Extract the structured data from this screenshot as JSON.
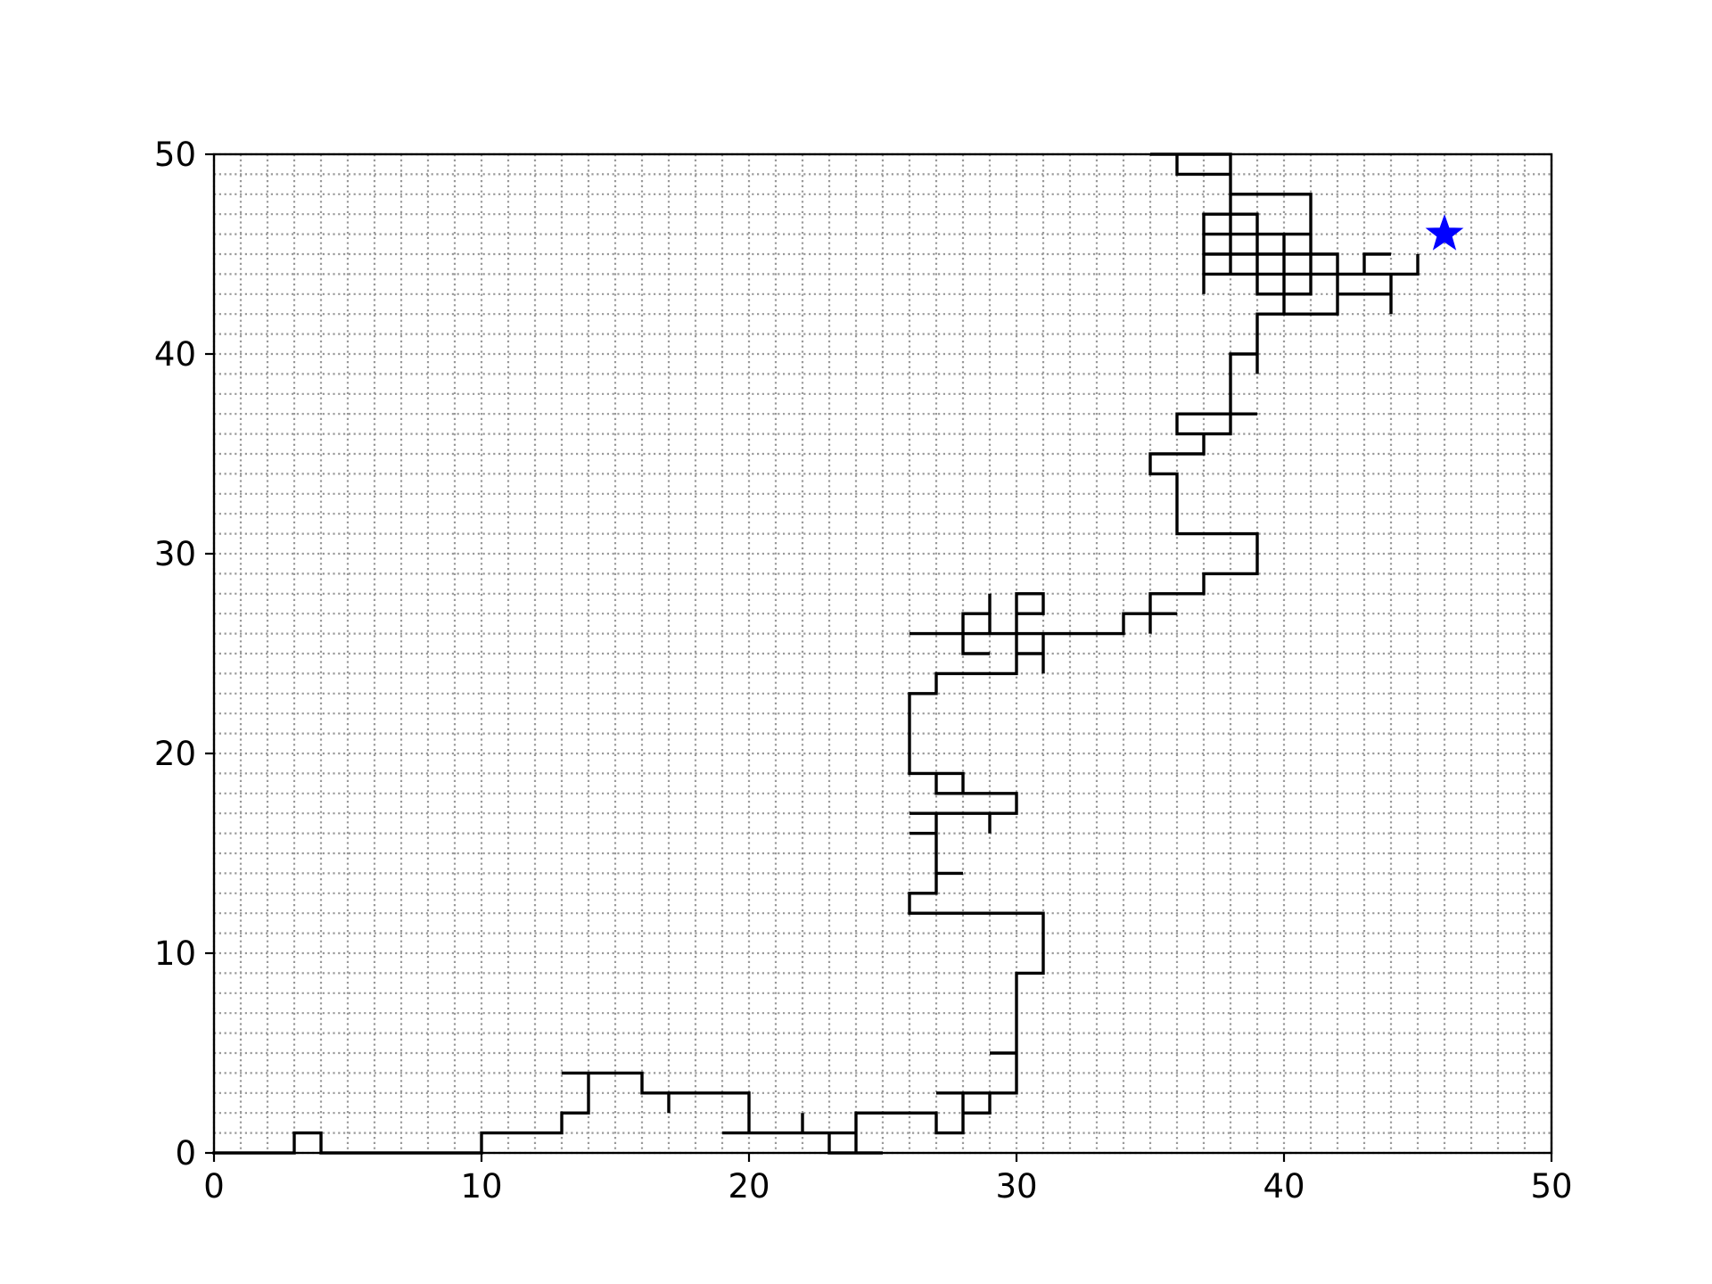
{
  "chart_data": {
    "type": "line",
    "title": "",
    "xlabel": "",
    "ylabel": "",
    "xlim": [
      0,
      50
    ],
    "ylim": [
      0,
      50
    ],
    "x_ticks": [
      "0",
      "10",
      "20",
      "30",
      "40",
      "50"
    ],
    "y_ticks": [
      "0",
      "10",
      "20",
      "30",
      "40",
      "50"
    ],
    "grid": true,
    "grid_step": 1,
    "grid_style": "dotted",
    "grid_color": "#999999",
    "path_color": "#000000",
    "marker_color": "#0000ff",
    "series": [
      {
        "marker": "none",
        "points": [
          [
            0,
            0
          ],
          [
            3,
            0
          ],
          [
            3,
            1
          ],
          [
            4,
            1
          ],
          [
            4,
            0
          ],
          [
            10,
            0
          ],
          [
            10,
            1
          ],
          [
            13,
            1
          ],
          [
            13,
            2
          ],
          [
            14,
            2
          ],
          [
            14,
            4
          ],
          [
            13,
            4
          ],
          [
            16,
            4
          ],
          [
            16,
            3
          ],
          [
            17,
            3
          ],
          [
            17,
            2
          ],
          [
            17,
            3
          ],
          [
            20,
            3
          ],
          [
            20,
            1
          ],
          [
            19,
            1
          ],
          [
            22,
            1
          ],
          [
            22,
            2
          ],
          [
            22,
            1
          ],
          [
            24,
            1
          ],
          [
            24,
            0
          ],
          [
            23,
            0
          ],
          [
            23,
            1
          ],
          [
            24,
            1
          ],
          [
            24,
            0
          ],
          [
            25,
            0
          ],
          [
            24,
            0
          ],
          [
            24,
            2
          ],
          [
            27,
            2
          ],
          [
            27,
            1
          ],
          [
            28,
            1
          ],
          [
            28,
            3
          ],
          [
            27,
            3
          ],
          [
            29,
            3
          ],
          [
            29,
            2
          ],
          [
            28,
            2
          ],
          [
            28,
            3
          ],
          [
            30,
            3
          ],
          [
            30,
            5
          ],
          [
            29,
            5
          ],
          [
            30,
            5
          ],
          [
            30,
            9
          ],
          [
            31,
            9
          ],
          [
            31,
            12
          ],
          [
            26,
            12
          ],
          [
            26,
            13
          ],
          [
            27,
            13
          ],
          [
            27,
            14
          ],
          [
            28,
            14
          ],
          [
            27,
            14
          ],
          [
            27,
            16
          ],
          [
            26,
            16
          ],
          [
            27,
            16
          ],
          [
            27,
            17
          ],
          [
            26,
            17
          ],
          [
            29,
            17
          ],
          [
            29,
            16
          ],
          [
            29,
            17
          ],
          [
            30,
            17
          ],
          [
            30,
            18
          ],
          [
            27,
            18
          ],
          [
            27,
            19
          ],
          [
            28,
            19
          ],
          [
            28,
            18
          ],
          [
            27,
            18
          ],
          [
            27,
            19
          ],
          [
            26,
            19
          ],
          [
            26,
            23
          ],
          [
            27,
            23
          ],
          [
            27,
            24
          ],
          [
            30,
            24
          ],
          [
            30,
            28
          ],
          [
            31,
            28
          ],
          [
            31,
            27
          ],
          [
            30,
            27
          ],
          [
            30,
            25
          ],
          [
            31,
            25
          ],
          [
            31,
            24
          ],
          [
            31,
            26
          ],
          [
            26,
            26
          ],
          [
            28,
            26
          ],
          [
            28,
            25
          ],
          [
            29,
            25
          ],
          [
            28,
            25
          ],
          [
            28,
            27
          ],
          [
            29,
            27
          ],
          [
            29,
            28
          ],
          [
            29,
            26
          ],
          [
            34,
            26
          ],
          [
            34,
            27
          ],
          [
            36,
            27
          ],
          [
            35,
            27
          ],
          [
            35,
            26
          ],
          [
            35,
            28
          ],
          [
            37,
            28
          ],
          [
            37,
            29
          ],
          [
            39,
            29
          ],
          [
            39,
            31
          ],
          [
            36,
            31
          ],
          [
            36,
            34
          ],
          [
            35,
            34
          ],
          [
            35,
            35
          ],
          [
            37,
            35
          ],
          [
            37,
            36
          ],
          [
            36,
            36
          ],
          [
            36,
            37
          ],
          [
            39,
            37
          ],
          [
            38,
            37
          ],
          [
            38,
            36
          ],
          [
            37,
            36
          ],
          [
            38,
            36
          ],
          [
            38,
            40
          ],
          [
            39,
            40
          ],
          [
            39,
            39
          ],
          [
            39,
            42
          ],
          [
            42,
            42
          ],
          [
            42,
            45
          ],
          [
            39,
            45
          ],
          [
            39,
            43
          ],
          [
            40,
            43
          ],
          [
            40,
            42
          ],
          [
            40,
            46
          ],
          [
            41,
            46
          ],
          [
            41,
            43
          ],
          [
            39,
            43
          ],
          [
            39,
            46
          ],
          [
            40,
            46
          ],
          [
            38,
            46
          ],
          [
            38,
            45
          ],
          [
            37,
            45
          ],
          [
            37,
            47
          ],
          [
            39,
            47
          ],
          [
            39,
            46
          ],
          [
            39,
            47
          ],
          [
            38,
            47
          ],
          [
            38,
            46
          ],
          [
            37,
            46
          ],
          [
            37,
            43
          ],
          [
            37,
            44
          ],
          [
            45,
            44
          ],
          [
            45,
            45
          ],
          [
            45,
            44
          ],
          [
            44,
            44
          ],
          [
            44,
            42
          ],
          [
            44,
            43
          ],
          [
            42,
            43
          ],
          [
            42,
            44
          ],
          [
            43,
            44
          ],
          [
            43,
            45
          ],
          [
            44,
            45
          ],
          [
            43,
            45
          ],
          [
            43,
            44
          ],
          [
            38,
            44
          ],
          [
            38,
            48
          ],
          [
            41,
            48
          ],
          [
            41,
            44
          ],
          [
            41,
            45
          ],
          [
            38,
            45
          ],
          [
            38,
            50
          ],
          [
            35,
            50
          ],
          [
            36,
            50
          ],
          [
            36,
            49
          ],
          [
            38,
            49
          ],
          [
            38,
            50
          ]
        ]
      },
      {
        "marker": "star",
        "points": [
          [
            46,
            46
          ]
        ]
      }
    ]
  }
}
